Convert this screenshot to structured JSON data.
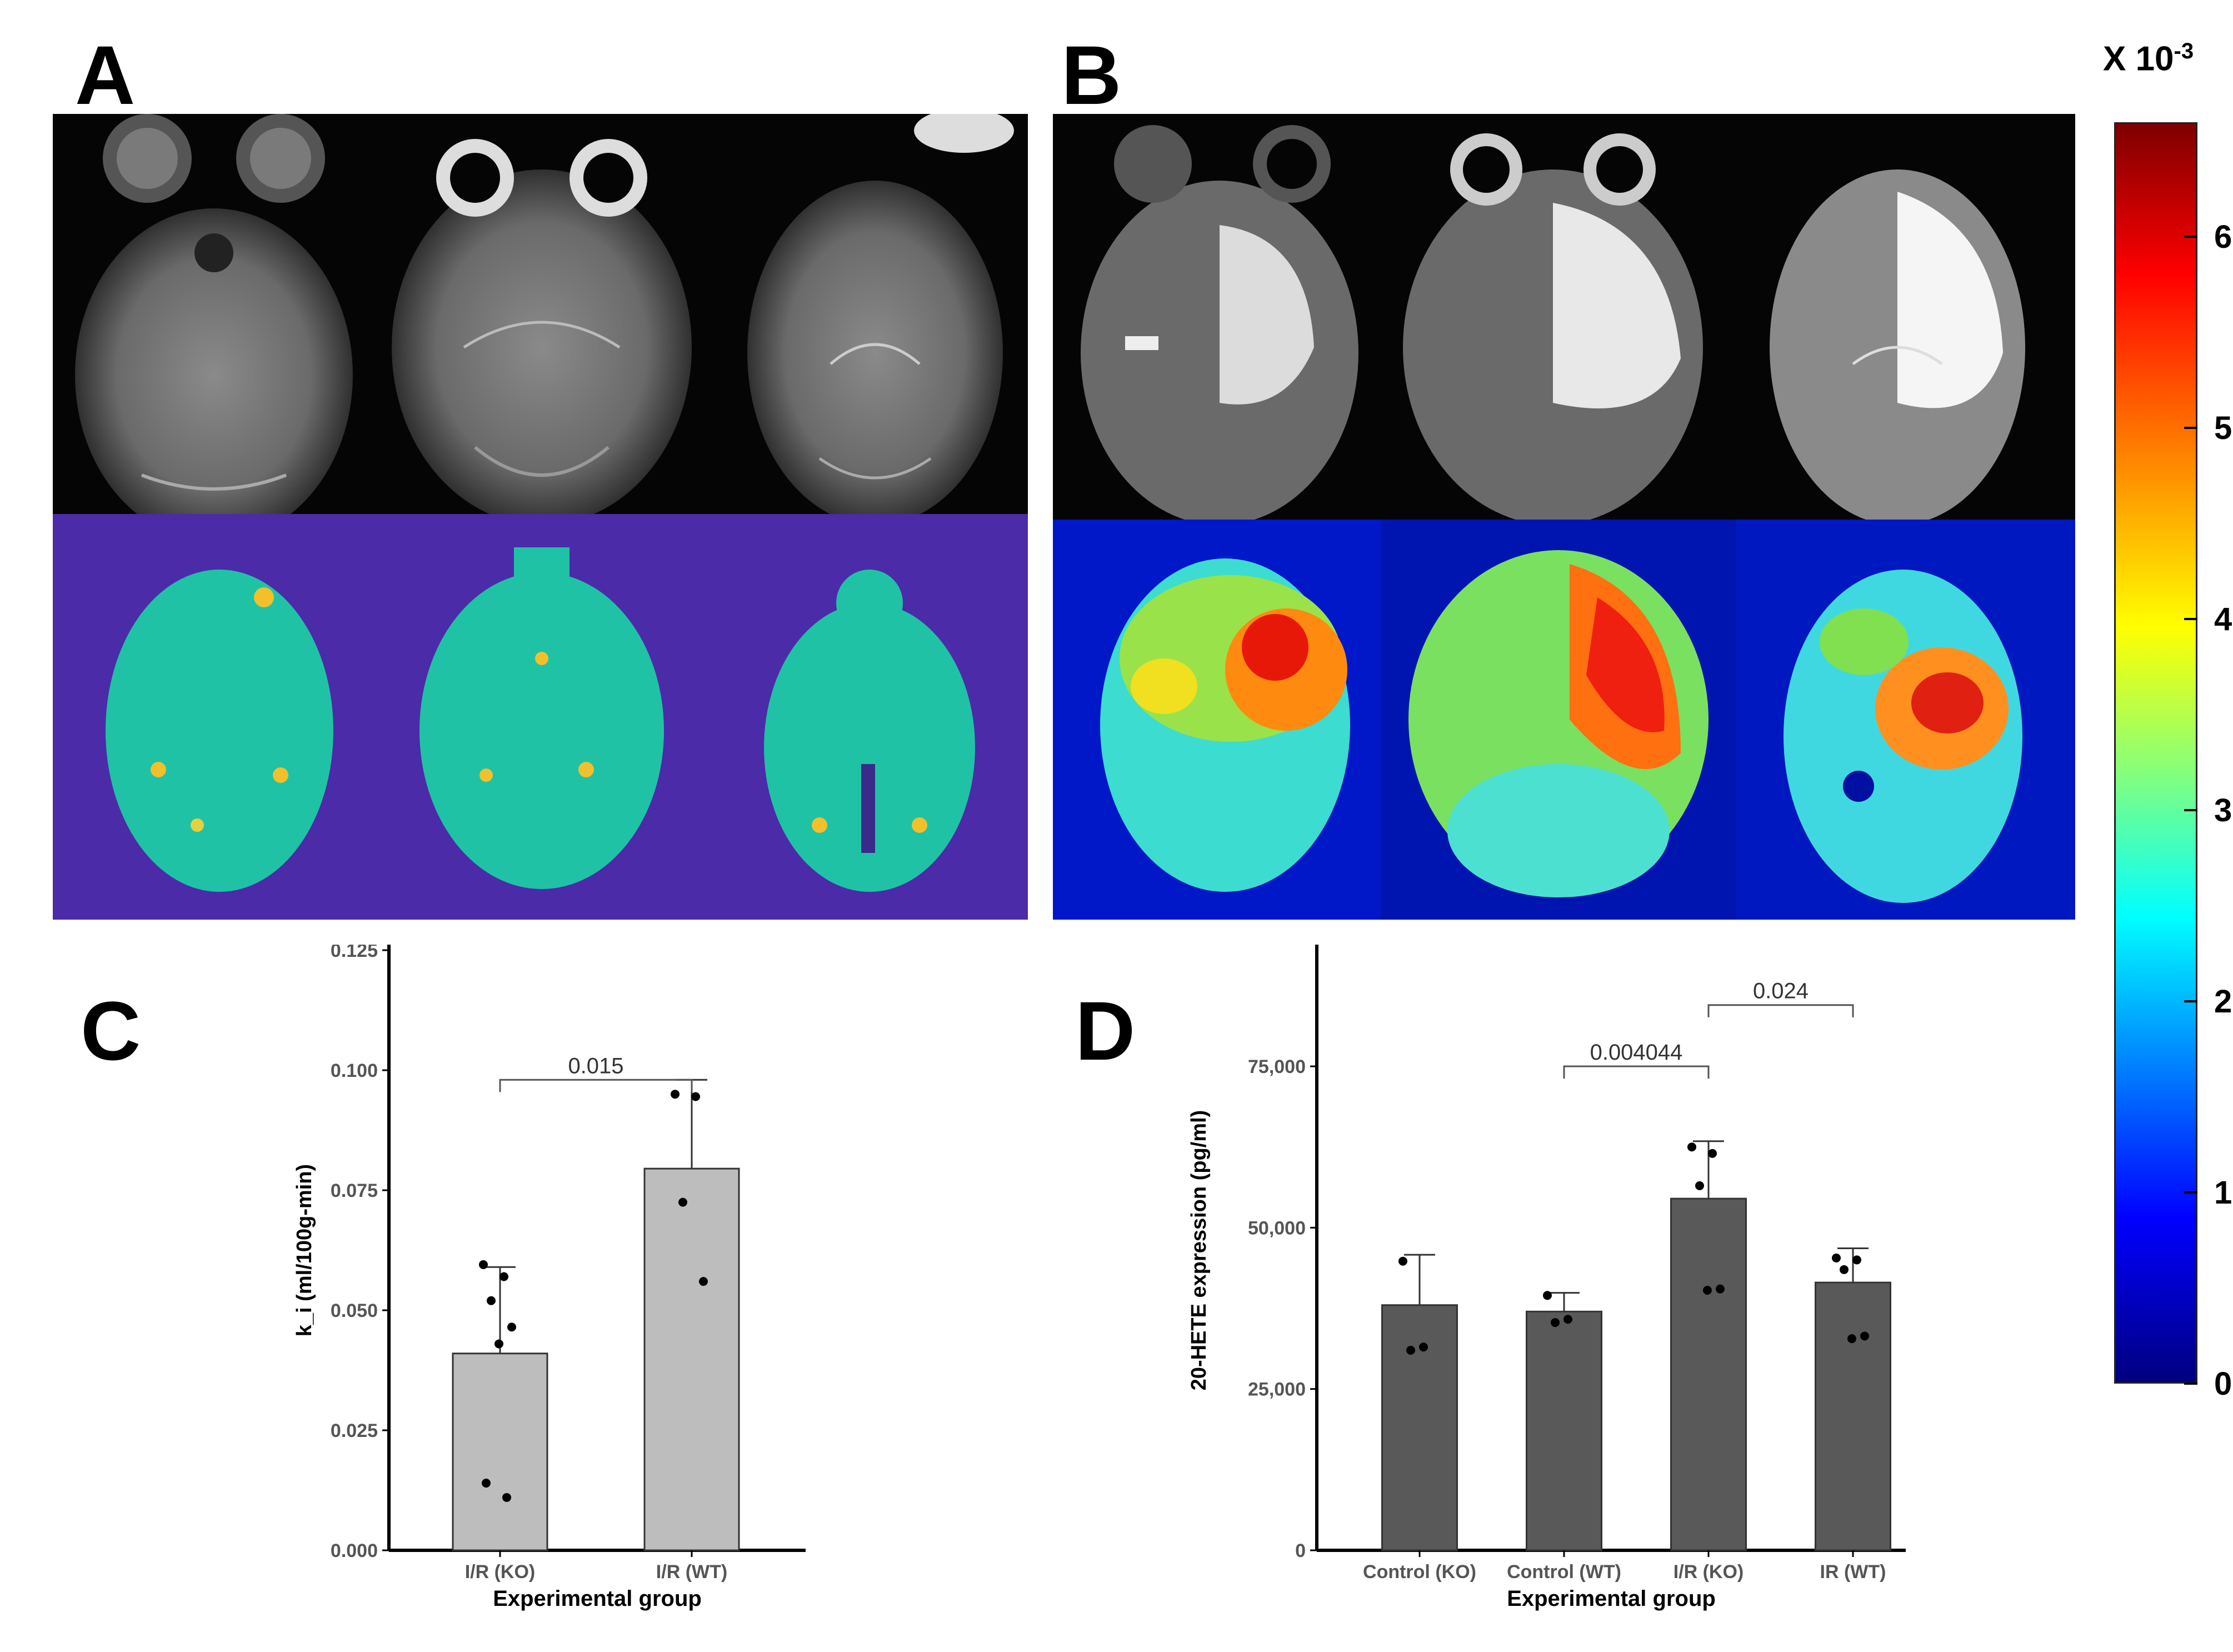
{
  "figure": {
    "panels": {
      "a": "A",
      "b": "B",
      "c": "C",
      "d": "D"
    },
    "images": {
      "a_mri": "Panel A: three axial T2-weighted MRI brain slices (grayscale)",
      "a_map": "Panel A: corresponding k_i parametric maps, mostly uniform teal on purple background",
      "b_mri": "Panel B: three axial MRI slices with bright hyperintense lesion in right hemisphere",
      "b_map": "Panel B: corresponding k_i maps with red/orange high-permeability region"
    },
    "colorbar": {
      "title": "X 10",
      "exponent": "-3",
      "ticks": [
        "6",
        "5",
        "4",
        "3",
        "2",
        "1",
        "0"
      ],
      "tick_values": [
        6,
        5,
        4,
        3,
        2,
        1,
        0
      ],
      "range": [
        0,
        6.6
      ]
    }
  },
  "chart_data": [
    {
      "id": "C",
      "type": "bar",
      "title": "",
      "xlabel": "Experimental group",
      "ylabel": "k_i (ml/100g-min)",
      "categories": [
        "I/R (KO)",
        "I/R (WT)"
      ],
      "values": [
        0.041,
        0.0795
      ],
      "error_upper": [
        0.059,
        0.098
      ],
      "points": [
        [
          0.0595,
          0.057,
          0.052,
          0.0465,
          0.043,
          0.014,
          0.011
        ],
        [
          0.095,
          0.0945,
          0.0725,
          0.056
        ]
      ],
      "yticks": [
        "0.000",
        "0.025",
        "0.050",
        "0.075",
        "0.100",
        "0.125"
      ],
      "ytick_values": [
        0,
        0.025,
        0.05,
        0.075,
        0.1,
        0.125
      ],
      "ylim": [
        0,
        0.125
      ],
      "bar_color": "#bdbdbd",
      "annotations": [
        {
          "from": 0,
          "to": 1,
          "label": "0.015"
        }
      ]
    },
    {
      "id": "D",
      "type": "bar",
      "title": "",
      "xlabel": "Experimental group",
      "ylabel": "20-HETE expression (pg/ml)",
      "categories": [
        "Control (KO)",
        "Control (WT)",
        "I/R (KO)",
        "IR (WT)"
      ],
      "values": [
        38000,
        37000,
        54500,
        41500
      ],
      "error_upper": [
        45800,
        39900,
        63400,
        46800
      ],
      "points": [
        [
          44800,
          31500,
          31000
        ],
        [
          39500,
          35800,
          35300
        ],
        [
          62500,
          61500,
          56500,
          40500,
          40300
        ],
        [
          45300,
          45000,
          43500,
          33200,
          32800
        ]
      ],
      "yticks": [
        "0",
        "25,000",
        "50,000",
        "75,000"
      ],
      "ytick_values": [
        0,
        25000,
        50000,
        75000
      ],
      "ylim": [
        0,
        93000
      ],
      "bar_color": "#595959",
      "annotations": [
        {
          "from": 1,
          "to": 2,
          "label": "0.004044",
          "y": 75000
        },
        {
          "from": 2,
          "to": 3,
          "label": "0.024",
          "y": 84500
        }
      ]
    }
  ]
}
